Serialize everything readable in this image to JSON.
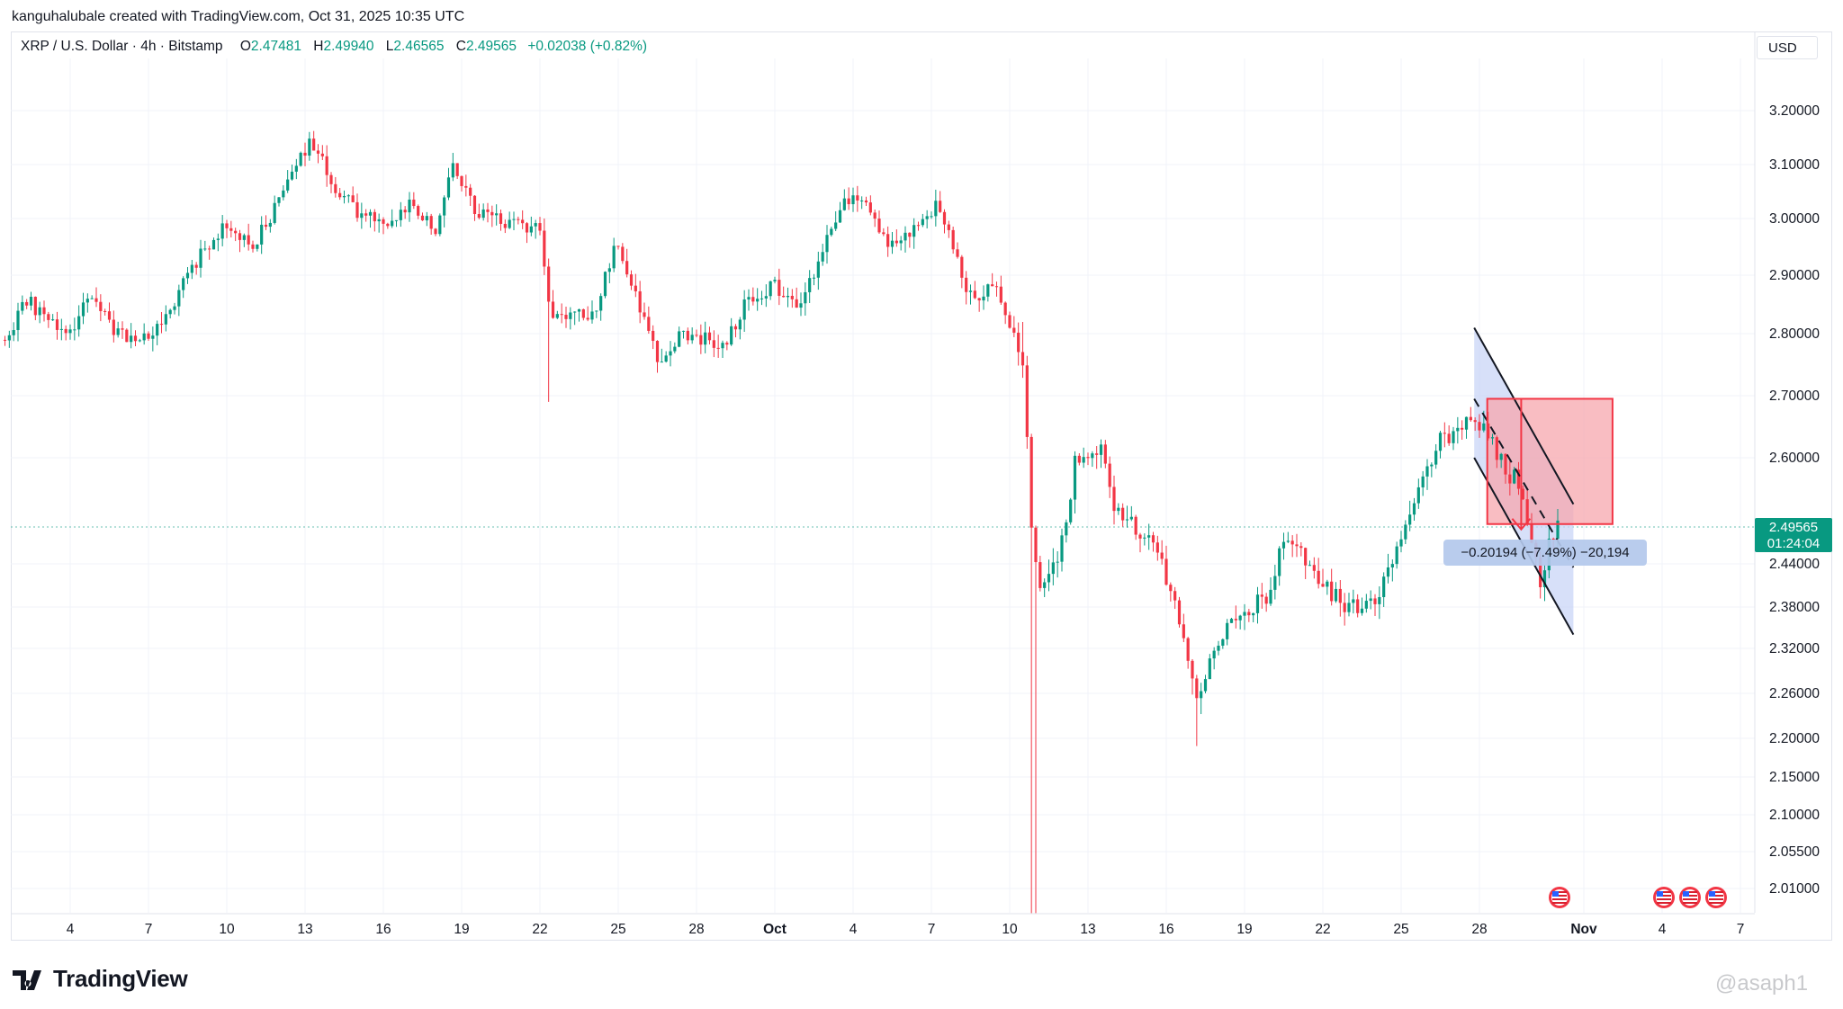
{
  "attribution": "kanguhalubale created with TradingView.com, Oct 31, 2025 10:35 UTC",
  "legend": {
    "symbol": "XRP / U.S. Dollar · 4h · Bitstamp",
    "open_label": "O",
    "open": "2.47481",
    "high_label": "H",
    "high": "2.49940",
    "low_label": "L",
    "low": "2.46565",
    "close_label": "C",
    "close": "2.49565",
    "change": "+0.02038 (+0.82%)"
  },
  "currency": "USD",
  "current_price": {
    "price": "2.49565",
    "countdown": "01:24:04"
  },
  "measurement": "−0.20194 (−7.49%) −20,194",
  "brand": "TradingView",
  "watermark": "@asaph1",
  "colors": {
    "up": "#089981",
    "down": "#f23645",
    "channel_fill": "#c9d6f7",
    "short_box": "#f7a7ad",
    "grid": "#f0f3fa"
  },
  "chart_data": {
    "type": "candlestick",
    "title": "XRP / U.S. Dollar · 4h · Bitstamp",
    "xlabel": "",
    "ylabel": "USD",
    "x_tick_labels": [
      {
        "label": "4",
        "day": 4
      },
      {
        "label": "7",
        "day": 7
      },
      {
        "label": "10",
        "day": 10
      },
      {
        "label": "13",
        "day": 13
      },
      {
        "label": "16",
        "day": 16
      },
      {
        "label": "19",
        "day": 19
      },
      {
        "label": "22",
        "day": 22
      },
      {
        "label": "25",
        "day": 25
      },
      {
        "label": "28",
        "day": 28
      },
      {
        "label": "Oct",
        "day": 31
      },
      {
        "label": "4",
        "day": 34
      },
      {
        "label": "7",
        "day": 37
      },
      {
        "label": "10",
        "day": 40
      },
      {
        "label": "13",
        "day": 43
      },
      {
        "label": "16",
        "day": 46
      },
      {
        "label": "19",
        "day": 49
      },
      {
        "label": "22",
        "day": 52
      },
      {
        "label": "25",
        "day": 55
      },
      {
        "label": "28",
        "day": 58
      },
      {
        "label": "Nov",
        "day": 62
      },
      {
        "label": "4",
        "day": 65
      },
      {
        "label": "7",
        "day": 68
      }
    ],
    "y_ticks": [
      "3.20000",
      "3.10000",
      "3.00000",
      "2.90000",
      "2.80000",
      "2.70000",
      "2.60000",
      "2.44000",
      "2.38000",
      "2.32000",
      "2.26000",
      "2.20000",
      "2.15000",
      "2.10000",
      "2.05500",
      "2.01000"
    ],
    "y_range": [
      1.98,
      3.28
    ],
    "series_description": "Approximate 4h closes, day index from Sep 1",
    "price_path": [
      [
        1.5,
        2.79
      ],
      [
        2.3,
        2.86
      ],
      [
        3,
        2.83
      ],
      [
        3.8,
        2.79
      ],
      [
        4.8,
        2.87
      ],
      [
        5.8,
        2.8
      ],
      [
        6.8,
        2.79
      ],
      [
        7.7,
        2.83
      ],
      [
        9,
        2.94
      ],
      [
        10,
        2.99
      ],
      [
        11,
        2.95
      ],
      [
        12,
        3.03
      ],
      [
        13.2,
        3.15
      ],
      [
        14,
        3.07
      ],
      [
        15,
        3.01
      ],
      [
        16,
        2.99
      ],
      [
        17,
        3.03
      ],
      [
        18,
        2.98
      ],
      [
        18.6,
        3.1
      ],
      [
        19.6,
        3.01
      ],
      [
        21,
        2.99
      ],
      [
        22,
        2.98
      ],
      [
        22.4,
        2.83
      ],
      [
        24,
        2.83
      ],
      [
        25,
        2.96
      ],
      [
        25.6,
        2.87
      ],
      [
        26.5,
        2.76
      ],
      [
        27.5,
        2.8
      ],
      [
        29,
        2.78
      ],
      [
        30,
        2.86
      ],
      [
        31,
        2.88
      ],
      [
        32,
        2.85
      ],
      [
        33,
        2.96
      ],
      [
        33.8,
        3.04
      ],
      [
        34.5,
        3.02
      ],
      [
        35.3,
        2.96
      ],
      [
        36,
        2.97
      ],
      [
        37.3,
        3.03
      ],
      [
        38,
        2.93
      ],
      [
        38.5,
        2.86
      ],
      [
        39.5,
        2.88
      ],
      [
        40,
        2.82
      ],
      [
        40.5,
        2.75
      ],
      [
        40.9,
        2.45
      ],
      [
        41.2,
        2.4
      ],
      [
        42,
        2.47
      ],
      [
        42.5,
        2.59
      ],
      [
        43.5,
        2.61
      ],
      [
        44,
        2.52
      ],
      [
        45,
        2.49
      ],
      [
        45.8,
        2.45
      ],
      [
        46.7,
        2.33
      ],
      [
        47.2,
        2.25
      ],
      [
        48,
        2.33
      ],
      [
        49,
        2.37
      ],
      [
        50,
        2.4
      ],
      [
        50.5,
        2.48
      ],
      [
        51,
        2.47
      ],
      [
        51.5,
        2.44
      ],
      [
        52.2,
        2.4
      ],
      [
        53,
        2.38
      ],
      [
        54,
        2.38
      ],
      [
        55,
        2.47
      ],
      [
        55.7,
        2.56
      ],
      [
        56.5,
        2.63
      ],
      [
        57,
        2.64
      ],
      [
        57.8,
        2.66
      ],
      [
        58.3,
        2.64
      ],
      [
        59,
        2.58
      ],
      [
        59.6,
        2.56
      ],
      [
        60.3,
        2.41
      ],
      [
        60.8,
        2.49
      ],
      [
        61,
        2.496
      ]
    ],
    "drawings": {
      "descending_channel": {
        "upper": [
          [
            57.8,
            2.81
          ],
          [
            61.6,
            2.53
          ]
        ],
        "lower": [
          [
            57.8,
            2.6
          ],
          [
            61.6,
            2.34
          ]
        ],
        "mid": [
          [
            57.8,
            2.695
          ],
          [
            61.6,
            2.435
          ]
        ]
      },
      "short_position": {
        "entry": 2.5,
        "stop": 2.695,
        "start_day": 58.3,
        "end_day": 63.1
      },
      "price_range": {
        "from": 2.695,
        "to": 2.495,
        "change": "−0.20194 (−7.49%) −20,194"
      }
    },
    "events_days": [
      61,
      65,
      66,
      67
    ]
  }
}
